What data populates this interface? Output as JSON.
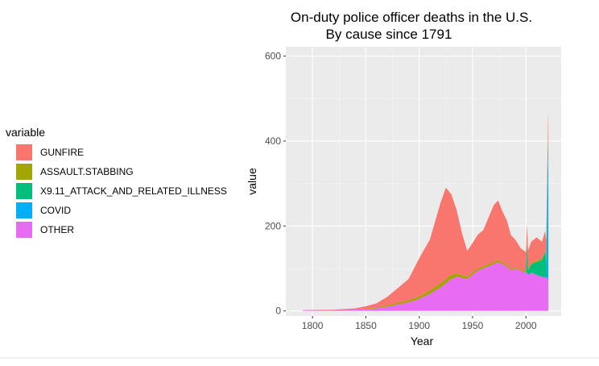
{
  "chart_data": {
    "type": "area",
    "stacked": true,
    "title": "On-duty police officer deaths in the U.S.",
    "subtitle": "By cause since 1791",
    "xlabel": "Year",
    "ylabel": "value",
    "xlim": [
      1775,
      2033
    ],
    "ylim": [
      -12,
      622
    ],
    "x_ticks": [
      1800,
      1850,
      1900,
      1950,
      2000
    ],
    "y_ticks": [
      0,
      200,
      400,
      600
    ],
    "grid": true,
    "legend": {
      "title": "variable",
      "placement": "left"
    },
    "x": [
      1791,
      1820,
      1840,
      1850,
      1860,
      1870,
      1880,
      1890,
      1900,
      1910,
      1920,
      1925,
      1930,
      1935,
      1940,
      1945,
      1950,
      1955,
      1960,
      1965,
      1970,
      1974,
      1978,
      1982,
      1986,
      1990,
      1995,
      2000,
      2001,
      2002,
      2005,
      2010,
      2015,
      2018,
      2019,
      2020,
      2021
    ],
    "series": [
      {
        "name": "GUNFIRE",
        "color": "#F8766D",
        "values": [
          0,
          1,
          3,
          6,
          10,
          20,
          35,
          50,
          90,
          120,
          190,
          215,
          190,
          150,
          100,
          60,
          70,
          80,
          85,
          110,
          135,
          140,
          120,
          105,
          80,
          65,
          50,
          45,
          40,
          45,
          50,
          55,
          40,
          45,
          45,
          45,
          60
        ]
      },
      {
        "name": "ASSAULT.STABBING",
        "color": "#A3A500",
        "values": [
          0,
          0,
          0,
          1,
          2,
          3,
          4,
          5,
          6,
          8,
          10,
          10,
          10,
          8,
          6,
          6,
          5,
          5,
          5,
          5,
          5,
          5,
          4,
          4,
          3,
          3,
          3,
          3,
          3,
          3,
          3,
          3,
          3,
          3,
          3,
          3,
          3
        ]
      },
      {
        "name": "X9.11_ATTACK_AND_RELATED_ILLNESS",
        "color": "#00BF7D",
        "values": [
          0,
          0,
          0,
          0,
          0,
          0,
          0,
          0,
          0,
          0,
          0,
          0,
          0,
          0,
          0,
          0,
          0,
          0,
          0,
          0,
          0,
          0,
          0,
          0,
          0,
          0,
          0,
          0,
          72,
          10,
          20,
          30,
          40,
          60,
          40,
          30,
          25
        ]
      },
      {
        "name": "COVID",
        "color": "#00B0F6",
        "values": [
          0,
          0,
          0,
          0,
          0,
          0,
          0,
          0,
          0,
          0,
          0,
          0,
          0,
          0,
          0,
          0,
          0,
          0,
          0,
          0,
          0,
          0,
          0,
          0,
          0,
          0,
          0,
          0,
          0,
          0,
          0,
          0,
          0,
          0,
          0,
          190,
          310
        ]
      },
      {
        "name": "OTHER",
        "color": "#E76BF3",
        "values": [
          2,
          2,
          3,
          4,
          6,
          10,
          15,
          20,
          28,
          40,
          55,
          65,
          75,
          80,
          78,
          75,
          85,
          95,
          100,
          105,
          110,
          115,
          110,
          105,
          95,
          100,
          95,
          90,
          90,
          85,
          90,
          85,
          80,
          80,
          78,
          75,
          80
        ]
      }
    ]
  }
}
